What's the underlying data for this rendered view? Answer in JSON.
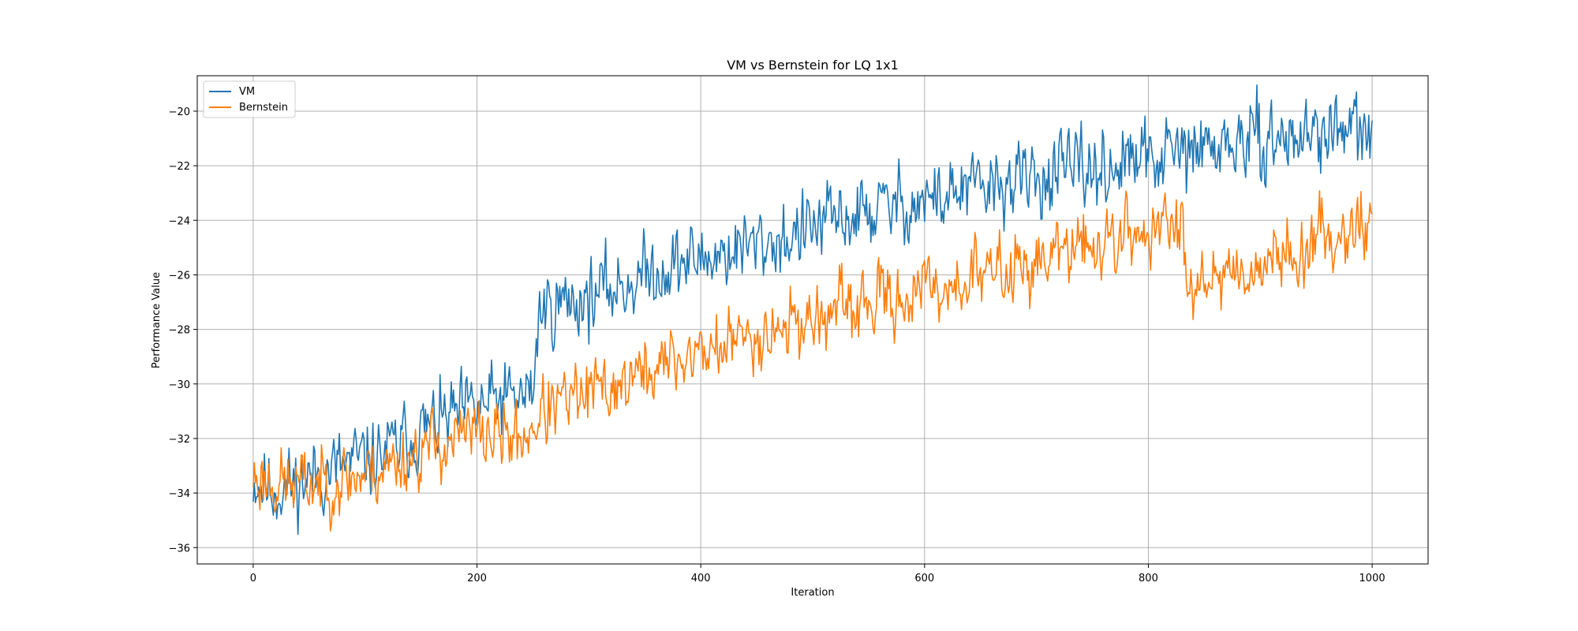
{
  "chart_data": {
    "type": "line",
    "title": "VM vs Bernstein for LQ 1x1",
    "xlabel": "Iteration",
    "ylabel": "Performance Value",
    "xlim": [
      -50,
      1050
    ],
    "ylim": [
      -36.6,
      -18.7
    ],
    "xticks": [
      0,
      200,
      400,
      600,
      800,
      1000
    ],
    "yticks": [
      -36,
      -34,
      -32,
      -30,
      -28,
      -26,
      -24,
      -22,
      -20
    ],
    "xtick_labels": [
      "0",
      "200",
      "400",
      "600",
      "800",
      "1000"
    ],
    "ytick_labels": [
      "−36",
      "−34",
      "−32",
      "−30",
      "−28",
      "−26",
      "−24",
      "−22",
      "−20"
    ],
    "grid": true,
    "legend": "top-left",
    "series": [
      {
        "name": "VM",
        "color": "#1f77b4",
        "x": [
          0,
          20,
          40,
          60,
          80,
          100,
          120,
          140,
          160,
          180,
          200,
          220,
          240,
          250,
          255,
          260,
          280,
          300,
          320,
          340,
          360,
          380,
          400,
          420,
          440,
          460,
          480,
          500,
          520,
          540,
          560,
          580,
          600,
          620,
          640,
          660,
          680,
          700,
          720,
          740,
          760,
          780,
          800,
          820,
          840,
          860,
          880,
          900,
          920,
          940,
          960,
          980,
          1000
        ],
        "y": [
          -33.5,
          -33.9,
          -33.6,
          -33.3,
          -33.0,
          -32.8,
          -32.5,
          -32.0,
          -31.5,
          -31.2,
          -30.9,
          -30.6,
          -30.5,
          -30.3,
          -27.5,
          -27.2,
          -27.0,
          -26.8,
          -26.5,
          -26.2,
          -25.8,
          -25.6,
          -25.4,
          -25.2,
          -25.0,
          -24.8,
          -24.6,
          -24.3,
          -24.0,
          -23.8,
          -23.6,
          -23.4,
          -23.3,
          -23.1,
          -22.9,
          -22.8,
          -22.6,
          -22.5,
          -22.3,
          -22.2,
          -22.1,
          -21.9,
          -21.8,
          -21.6,
          -21.5,
          -21.3,
          -21.2,
          -21.1,
          -21.0,
          -20.9,
          -20.7,
          -20.8,
          -20.9
        ],
        "noise": 0.65,
        "seed": 11
      },
      {
        "name": "Bernstein",
        "color": "#ff7f0e",
        "x": [
          0,
          20,
          40,
          60,
          80,
          100,
          120,
          140,
          160,
          180,
          200,
          220,
          240,
          260,
          280,
          300,
          320,
          340,
          360,
          380,
          400,
          420,
          440,
          460,
          480,
          500,
          520,
          540,
          560,
          580,
          600,
          620,
          640,
          660,
          680,
          700,
          720,
          740,
          760,
          780,
          800,
          820,
          830,
          835,
          840,
          860,
          880,
          900,
          920,
          940,
          960,
          980,
          1000
        ],
        "y": [
          -33.4,
          -33.6,
          -33.7,
          -33.6,
          -33.5,
          -33.3,
          -33.0,
          -32.6,
          -32.3,
          -32.0,
          -31.8,
          -31.9,
          -32.0,
          -31.0,
          -30.7,
          -30.4,
          -30.1,
          -29.8,
          -29.4,
          -29.1,
          -28.8,
          -28.6,
          -28.3,
          -28.0,
          -27.8,
          -27.6,
          -27.4,
          -27.2,
          -27.0,
          -26.8,
          -26.6,
          -26.4,
          -26.1,
          -25.9,
          -25.7,
          -25.5,
          -25.2,
          -25.0,
          -24.8,
          -24.6,
          -24.4,
          -24.3,
          -24.2,
          -26.0,
          -26.0,
          -25.9,
          -25.8,
          -25.6,
          -25.3,
          -25.0,
          -24.6,
          -24.2,
          -24.0
        ],
        "noise": 0.6,
        "seed": 23
      }
    ]
  }
}
